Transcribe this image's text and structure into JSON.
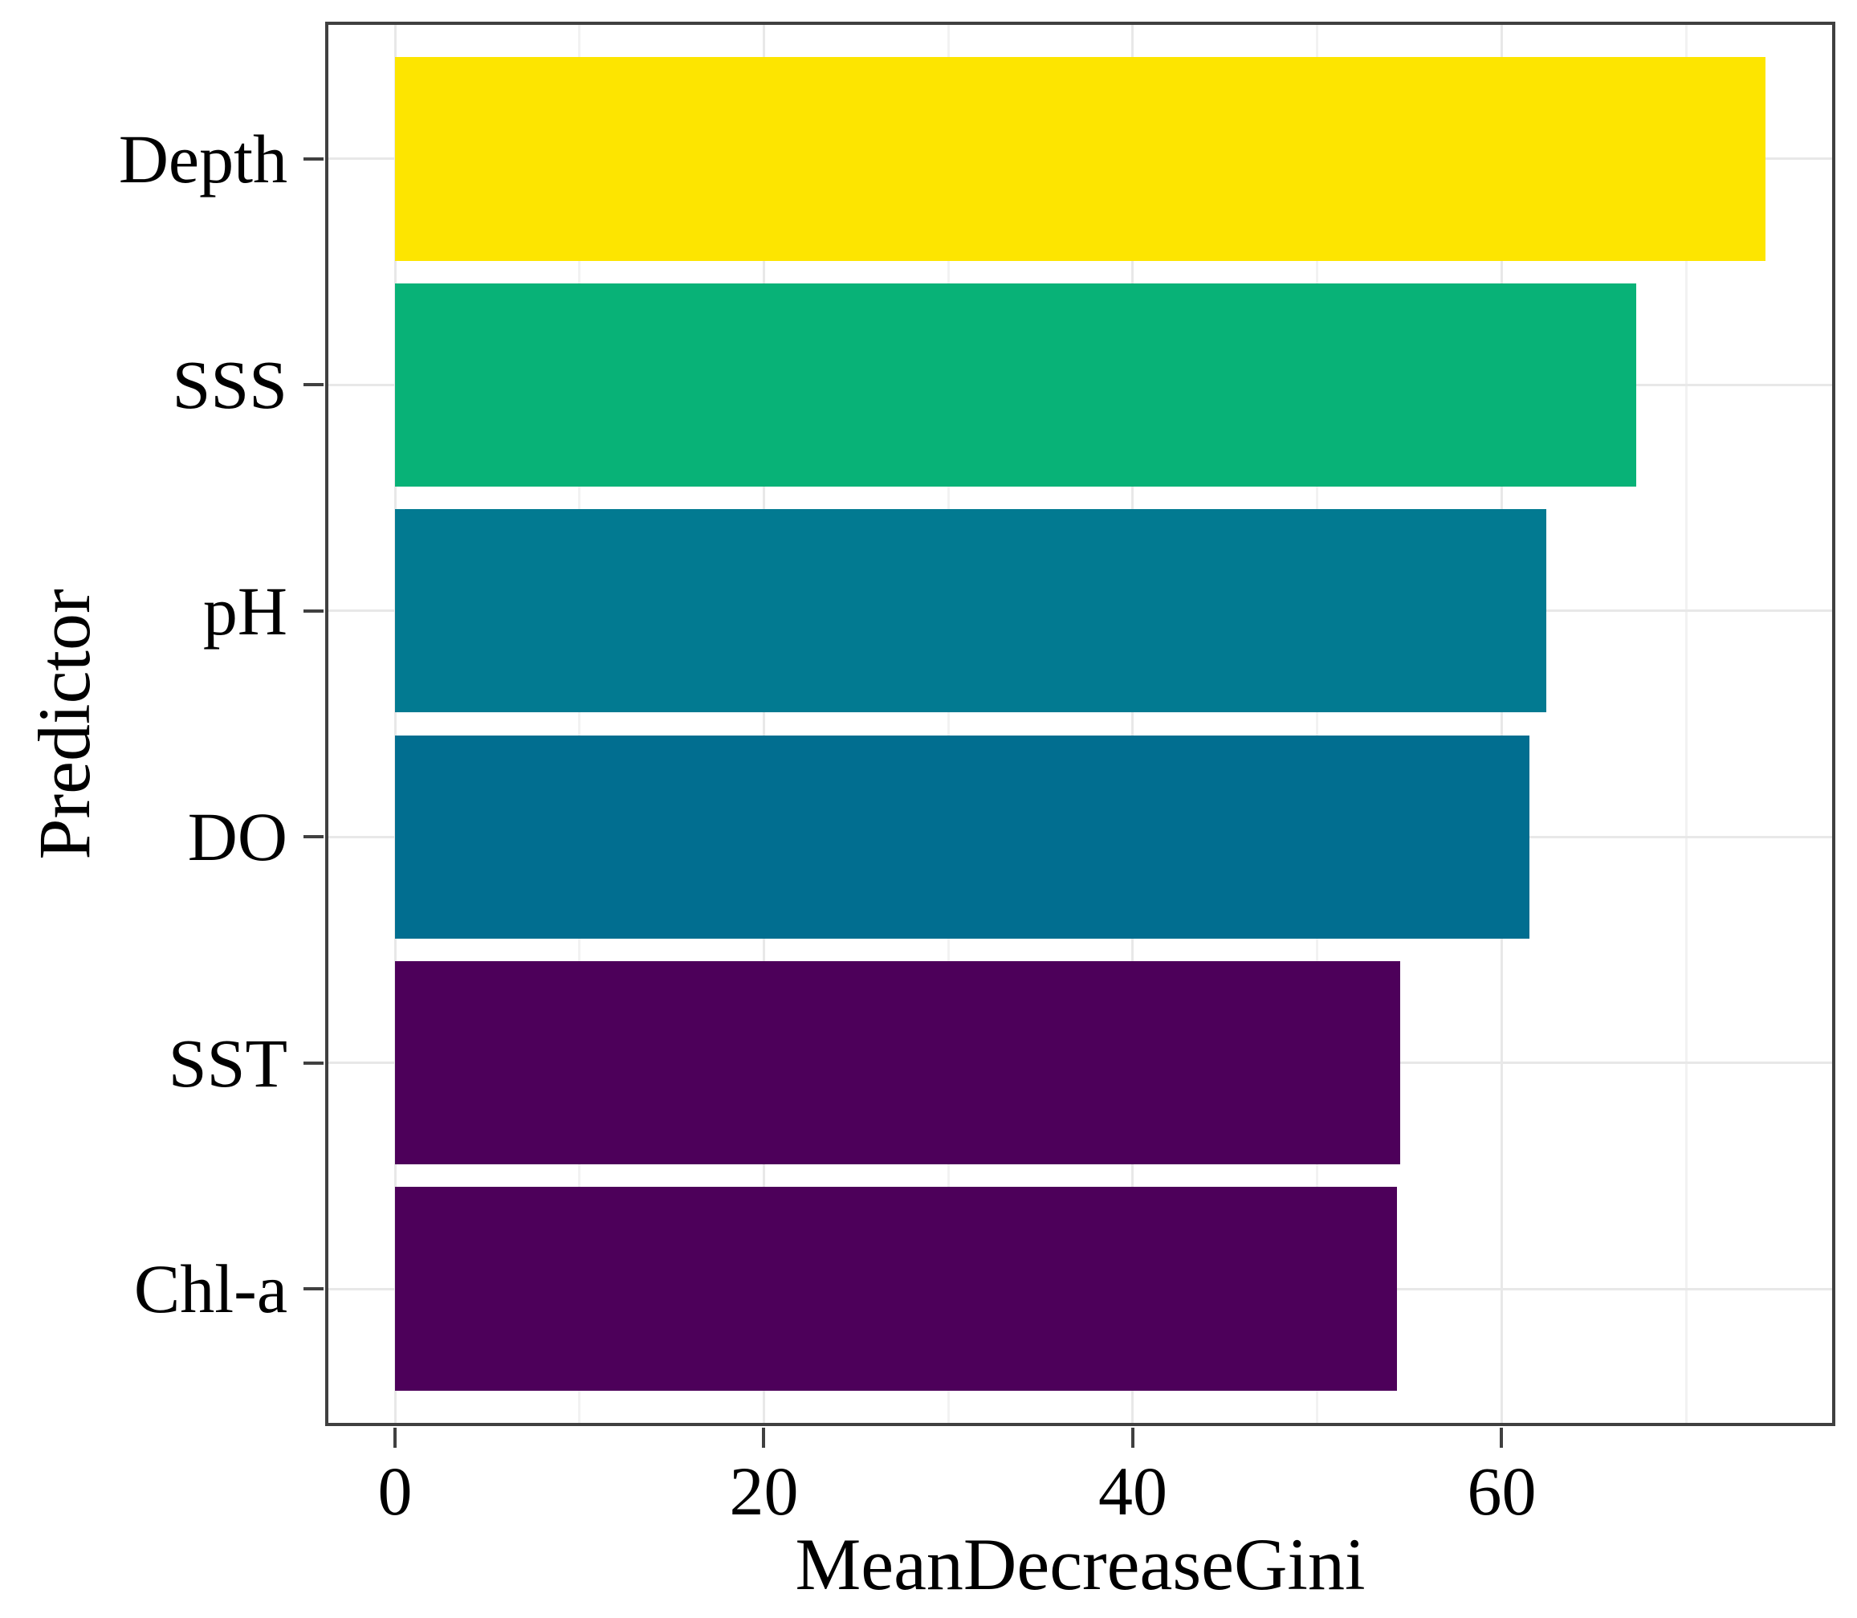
{
  "chart_data": {
    "type": "bar",
    "orientation": "horizontal",
    "title": "",
    "xlabel": "MeanDecreaseGini",
    "ylabel": "Predictor",
    "categories": [
      "Depth",
      "SSS",
      "pH",
      "DO",
      "SST",
      "Chl-a"
    ],
    "values": [
      74.3,
      67.3,
      62.4,
      61.5,
      54.5,
      54.3
    ],
    "bar_colors": [
      "#FDE500",
      "#08B277",
      "#027A91",
      "#016E90",
      "#4D005A",
      "#4D005A"
    ],
    "x_ticks": [
      0,
      20,
      40,
      60
    ],
    "x_tick_labels": [
      "0",
      "20",
      "40",
      "60"
    ],
    "x_minor_gridlines": [
      10,
      30,
      50,
      70
    ],
    "xlim": [
      -3.7,
      78
    ],
    "legend": "none",
    "grid": "major-x, minor-x, major-y",
    "bar_relative_height": 0.9,
    "outer_padding_bands": 0.6,
    "colors": {
      "background": "#FFFFFF",
      "panel_border": "#404040",
      "tick_mark": "#404040",
      "major_gridline": "#E8E8E8",
      "minor_gridline": "#F2F2F2",
      "text": "#000000"
    }
  }
}
